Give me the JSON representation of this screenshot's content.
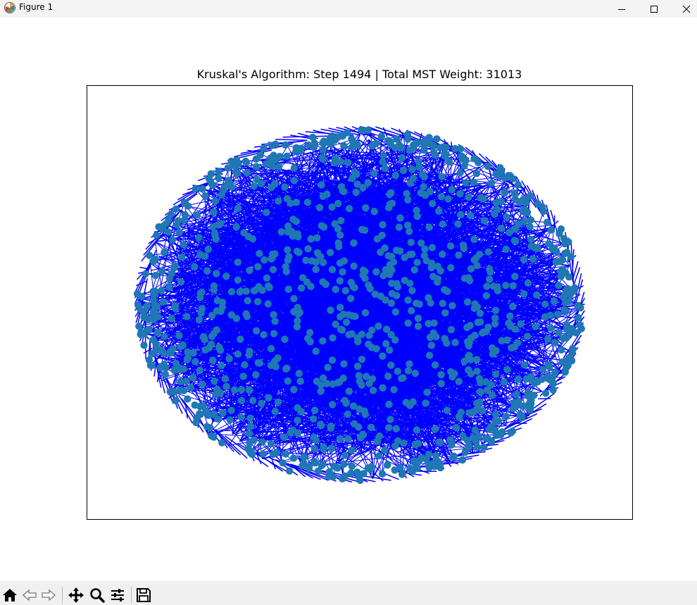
{
  "window": {
    "title": "Figure 1",
    "controls": [
      "minimize-icon",
      "maximize-icon",
      "close-icon"
    ]
  },
  "chart_data": {
    "type": "network",
    "title": "Kruskal's Algorithm: Step 1494 | Total MST Weight: 31013",
    "axes_visible": false,
    "ticks_visible": false,
    "grid": false,
    "legend": "none",
    "node_color": "#1f77b4",
    "edge_color": "#0000ff",
    "node_shape": "circle"
  },
  "toolbar": {
    "buttons": [
      "home-icon",
      "back-icon",
      "forward-icon",
      "pan-icon",
      "zoom-icon",
      "configure-subplots-icon",
      "save-icon"
    ]
  }
}
